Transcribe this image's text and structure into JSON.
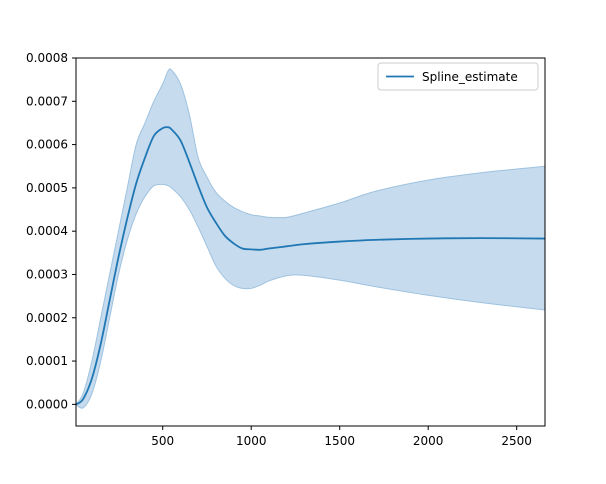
{
  "chart_data": {
    "type": "line",
    "title": "",
    "xlabel": "",
    "ylabel": "",
    "xlim": [
      10,
      2660
    ],
    "ylim": [
      -5e-05,
      0.0008
    ],
    "grid": false,
    "legend_position": "top-right",
    "x_ticks": [
      500,
      1000,
      1500,
      2000,
      2500
    ],
    "x_tick_labels": [
      "500",
      "1000",
      "1500",
      "2000",
      "2500"
    ],
    "y_ticks": [
      0,
      0.0001,
      0.0002,
      0.0003,
      0.0004,
      0.0005,
      0.0006,
      0.0007,
      0.0008
    ],
    "y_tick_labels": [
      "0.0000",
      "0.0001",
      "0.0002",
      "0.0003",
      "0.0004",
      "0.0005",
      "0.0006",
      "0.0007",
      "0.0008"
    ],
    "colors": {
      "line": "#1f77b4",
      "band_fill": "#c6dbed",
      "band_edge": "#9ec2df"
    },
    "series": [
      {
        "name": "Spline_estimate",
        "x": [
          10,
          50,
          100,
          150,
          200,
          250,
          300,
          350,
          400,
          450,
          500,
          530,
          550,
          600,
          650,
          700,
          750,
          800,
          850,
          900,
          950,
          1000,
          1050,
          1100,
          1200,
          1300,
          1500,
          1700,
          2000,
          2300,
          2660
        ],
        "y": [
          0,
          1.2e-05,
          6e-05,
          0.00014,
          0.00024,
          0.00034,
          0.00043,
          0.00051,
          0.00057,
          0.00062,
          0.000638,
          0.00064,
          0.000635,
          0.00061,
          0.00056,
          0.000505,
          0.000455,
          0.00042,
          0.00039,
          0.000372,
          0.00036,
          0.000358,
          0.000357,
          0.00036,
          0.000365,
          0.00037,
          0.000376,
          0.00038,
          0.000383,
          0.000384,
          0.000383
        ],
        "lower": [
          0,
          -8e-06,
          2.5e-05,
          0.0001,
          0.0002,
          0.0003,
          0.00038,
          0.00044,
          0.00048,
          0.000505,
          0.000508,
          0.000505,
          0.0005,
          0.00048,
          0.00045,
          0.00041,
          0.000365,
          0.00032,
          0.000292,
          0.000275,
          0.000268,
          0.000268,
          0.000275,
          0.000285,
          0.000297,
          0.000298,
          0.000287,
          0.000272,
          0.000252,
          0.000235,
          0.000218
        ],
        "upper": [
          0,
          2.5e-05,
          0.0001,
          0.0002,
          0.0003,
          0.0004,
          0.0005,
          0.0006,
          0.00065,
          0.0007,
          0.00074,
          0.00077,
          0.000772,
          0.00074,
          0.00067,
          0.00057,
          0.000525,
          0.00049,
          0.00047,
          0.000455,
          0.000445,
          0.000438,
          0.000435,
          0.000432,
          0.000432,
          0.000442,
          0.000465,
          0.000492,
          0.000518,
          0.000535,
          0.00055
        ]
      }
    ]
  }
}
